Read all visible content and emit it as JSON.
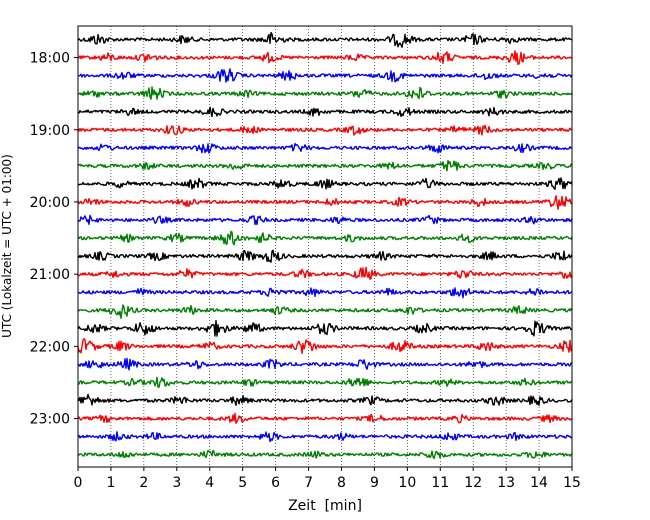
{
  "chart_data": {
    "type": "line",
    "title": "",
    "xlabel": "Zeit  [min]",
    "ylabel": "UTC (Lokalzeit = UTC + 01:00)",
    "xlim": [
      0,
      15
    ],
    "x_ticks": [
      "0",
      "1",
      "2",
      "3",
      "4",
      "5",
      "6",
      "7",
      "8",
      "9",
      "10",
      "11",
      "12",
      "13",
      "14",
      "15"
    ],
    "y_tick_labels": [
      "18:00",
      "19:00",
      "20:00",
      "21:00",
      "22:00",
      "23:00"
    ],
    "grid": "vertical dotted lines at each minute",
    "colors_cycle": [
      "#000000",
      "#ff0000",
      "#0000ff",
      "#008000"
    ],
    "series": [
      {
        "start": "17:45",
        "color": "#000000",
        "bursts": [
          [
            0.6,
            0.7
          ],
          [
            3.2,
            0.5
          ],
          [
            5.9,
            0.9
          ],
          [
            9.8,
            1.0
          ],
          [
            12.0,
            0.7
          ],
          [
            13.1,
            0.4
          ]
        ]
      },
      {
        "start": "18:00",
        "color": "#ff0000",
        "bursts": [
          [
            0.9,
            0.5
          ],
          [
            2.1,
            0.6
          ],
          [
            5.8,
            0.6
          ],
          [
            8.4,
            0.4
          ],
          [
            11.1,
            0.8
          ],
          [
            13.3,
            0.9
          ]
        ]
      },
      {
        "start": "18:15",
        "color": "#0000ff",
        "bursts": [
          [
            1.4,
            0.5
          ],
          [
            4.5,
            1.0
          ],
          [
            6.4,
            0.6
          ],
          [
            9.6,
            0.7
          ],
          [
            12.4,
            0.5
          ],
          [
            14.1,
            0.4
          ]
        ]
      },
      {
        "start": "18:30",
        "color": "#008000",
        "bursts": [
          [
            0.5,
            0.4
          ],
          [
            2.3,
            0.9
          ],
          [
            5.1,
            0.4
          ],
          [
            8.6,
            0.6
          ],
          [
            10.3,
            0.9
          ],
          [
            12.9,
            0.5
          ]
        ]
      },
      {
        "start": "18:45",
        "color": "#000000",
        "bursts": [
          [
            1.6,
            0.4
          ],
          [
            4.1,
            0.6
          ],
          [
            7.2,
            0.5
          ],
          [
            9.9,
            0.6
          ],
          [
            12.6,
            0.5
          ]
        ]
      },
      {
        "start": "19:00",
        "color": "#ff0000",
        "bursts": [
          [
            2.9,
            0.7
          ],
          [
            5.2,
            0.5
          ],
          [
            8.4,
            0.6
          ],
          [
            11.5,
            0.4
          ],
          [
            12.3,
            0.6
          ]
        ]
      },
      {
        "start": "19:15",
        "color": "#0000ff",
        "bursts": [
          [
            0.8,
            0.4
          ],
          [
            3.9,
            0.7
          ],
          [
            6.7,
            0.5
          ],
          [
            10.9,
            0.6
          ],
          [
            13.5,
            0.5
          ]
        ]
      },
      {
        "start": "19:30",
        "color": "#008000",
        "bursts": [
          [
            2.1,
            0.4
          ],
          [
            4.8,
            0.5
          ],
          [
            9.5,
            0.4
          ],
          [
            11.3,
            0.8
          ],
          [
            14.2,
            0.4
          ]
        ]
      },
      {
        "start": "19:45",
        "color": "#000000",
        "bursts": [
          [
            1.3,
            0.4
          ],
          [
            3.6,
            0.7
          ],
          [
            6.2,
            0.6
          ],
          [
            7.5,
            0.6
          ],
          [
            10.6,
            0.6
          ],
          [
            14.6,
            0.8
          ]
        ]
      },
      {
        "start": "20:00",
        "color": "#ff0000",
        "bursts": [
          [
            0.4,
            0.4
          ],
          [
            3.3,
            0.5
          ],
          [
            7.7,
            0.4
          ],
          [
            9.8,
            0.5
          ],
          [
            12.2,
            0.5
          ],
          [
            14.6,
            1.0
          ]
        ]
      },
      {
        "start": "20:15",
        "color": "#0000ff",
        "bursts": [
          [
            0.3,
            0.5
          ],
          [
            2.5,
            0.4
          ],
          [
            5.4,
            0.5
          ],
          [
            7.9,
            0.4
          ],
          [
            10.7,
            0.5
          ],
          [
            13.8,
            0.4
          ]
        ]
      },
      {
        "start": "20:30",
        "color": "#008000",
        "bursts": [
          [
            1.5,
            0.4
          ],
          [
            3.0,
            0.5
          ],
          [
            4.6,
            1.0
          ],
          [
            5.6,
            0.6
          ],
          [
            8.3,
            0.4
          ],
          [
            11.8,
            0.5
          ]
        ]
      },
      {
        "start": "20:45",
        "color": "#000000",
        "bursts": [
          [
            0.7,
            0.5
          ],
          [
            2.4,
            0.5
          ],
          [
            5.1,
            0.7
          ],
          [
            5.9,
            0.8
          ],
          [
            9.2,
            0.5
          ],
          [
            12.5,
            0.5
          ],
          [
            14.7,
            0.7
          ]
        ]
      },
      {
        "start": "21:00",
        "color": "#ff0000",
        "bursts": [
          [
            1.1,
            0.4
          ],
          [
            3.3,
            0.6
          ],
          [
            6.8,
            0.5
          ],
          [
            8.7,
            0.9
          ],
          [
            11.7,
            0.6
          ],
          [
            14.9,
            0.6
          ]
        ]
      },
      {
        "start": "21:15",
        "color": "#0000ff",
        "bursts": [
          [
            1.9,
            0.4
          ],
          [
            5.9,
            0.6
          ],
          [
            7.1,
            0.5
          ],
          [
            9.4,
            0.4
          ],
          [
            11.6,
            0.8
          ],
          [
            13.9,
            0.5
          ]
        ]
      },
      {
        "start": "21:30",
        "color": "#008000",
        "bursts": [
          [
            1.3,
            1.0
          ],
          [
            3.4,
            0.5
          ],
          [
            6.1,
            0.5
          ],
          [
            10.1,
            0.5
          ],
          [
            13.4,
            0.5
          ]
        ]
      },
      {
        "start": "21:45",
        "color": "#000000",
        "bursts": [
          [
            0.5,
            0.6
          ],
          [
            2.0,
            0.9
          ],
          [
            4.2,
            1.0
          ],
          [
            5.3,
            0.7
          ],
          [
            7.5,
            0.8
          ],
          [
            10.5,
            0.6
          ],
          [
            13.9,
            1.0
          ]
        ]
      },
      {
        "start": "22:00",
        "color": "#ff0000",
        "bursts": [
          [
            0.2,
            1.0
          ],
          [
            1.3,
            0.6
          ],
          [
            4.0,
            0.5
          ],
          [
            6.9,
            1.0
          ],
          [
            9.8,
            0.8
          ],
          [
            12.4,
            0.6
          ],
          [
            14.9,
            0.8
          ]
        ]
      },
      {
        "start": "22:15",
        "color": "#0000ff",
        "bursts": [
          [
            0.5,
            0.6
          ],
          [
            1.5,
            0.7
          ],
          [
            3.6,
            0.5
          ],
          [
            5.9,
            0.6
          ],
          [
            8.7,
            0.7
          ],
          [
            12.1,
            0.5
          ]
        ]
      },
      {
        "start": "22:30",
        "color": "#008000",
        "bursts": [
          [
            1.7,
            0.4
          ],
          [
            2.5,
            0.7
          ],
          [
            5.2,
            0.4
          ],
          [
            8.5,
            0.8
          ],
          [
            11.2,
            0.4
          ],
          [
            13.6,
            0.4
          ]
        ]
      },
      {
        "start": "22:45",
        "color": "#000000",
        "bursts": [
          [
            0.3,
            0.9
          ],
          [
            3.1,
            0.5
          ],
          [
            4.9,
            0.6
          ],
          [
            8.9,
            0.5
          ],
          [
            12.7,
            0.6
          ],
          [
            13.9,
            0.6
          ]
        ]
      },
      {
        "start": "23:00",
        "color": "#ff0000",
        "bursts": [
          [
            0.8,
            0.4
          ],
          [
            4.8,
            0.6
          ],
          [
            9.0,
            0.5
          ],
          [
            11.6,
            0.4
          ],
          [
            14.3,
            0.4
          ]
        ]
      },
      {
        "start": "23:15",
        "color": "#0000ff",
        "bursts": [
          [
            1.2,
            0.5
          ],
          [
            2.3,
            0.4
          ],
          [
            5.8,
            0.6
          ],
          [
            8.0,
            0.4
          ],
          [
            11.3,
            0.5
          ],
          [
            13.3,
            0.4
          ]
        ]
      },
      {
        "start": "23:30",
        "color": "#008000",
        "bursts": [
          [
            1.4,
            0.4
          ],
          [
            4.0,
            0.5
          ],
          [
            7.2,
            0.4
          ],
          [
            10.8,
            0.6
          ],
          [
            13.9,
            0.5
          ]
        ]
      }
    ]
  }
}
